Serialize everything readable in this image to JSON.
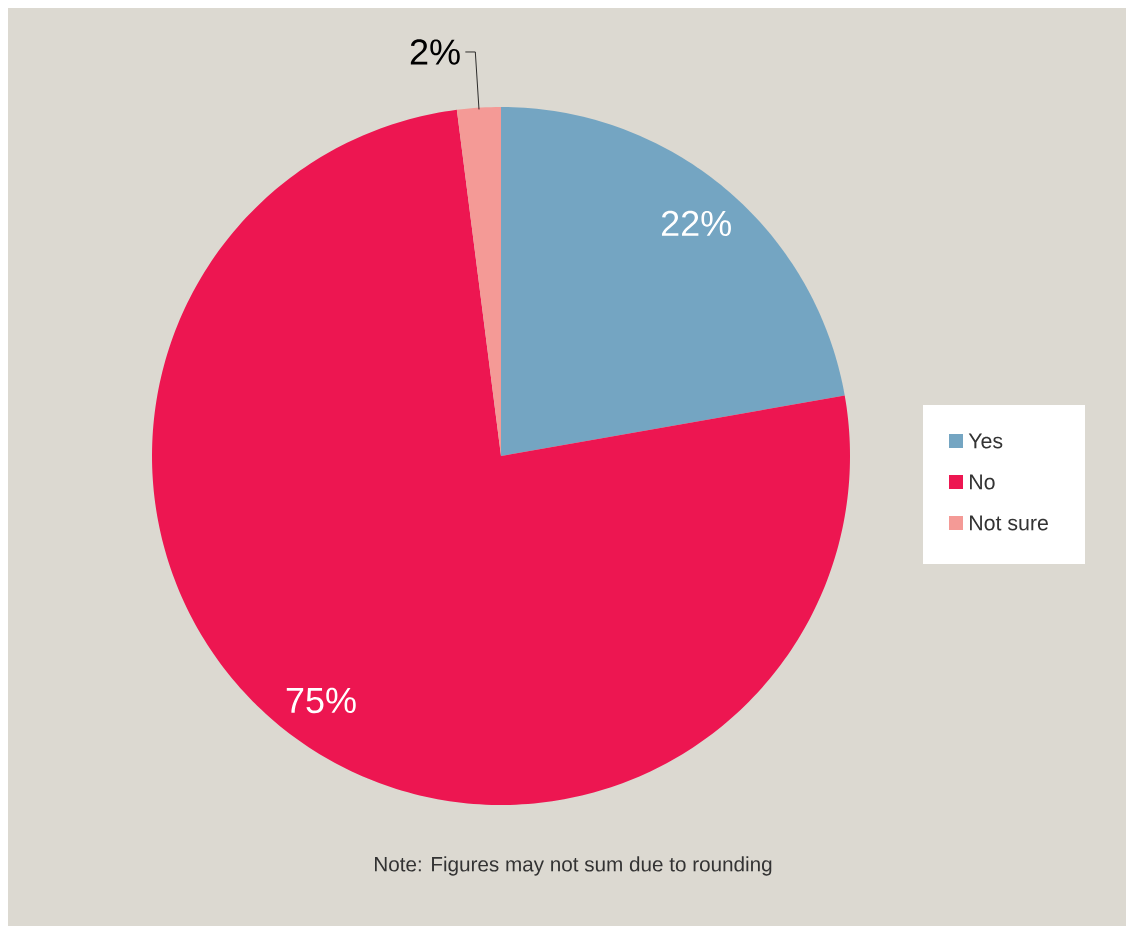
{
  "chart_data": {
    "type": "pie",
    "categories": [
      "Yes",
      "No",
      "Not sure"
    ],
    "values": [
      22,
      75,
      2
    ],
    "colors": [
      "#74a5c2",
      "#ed1651",
      "#f49a96"
    ],
    "value_labels": [
      "22%",
      "75%",
      "2%"
    ],
    "legend": "right",
    "annotations": [
      "Note: Figures may not sum due to rounding"
    ]
  }
}
